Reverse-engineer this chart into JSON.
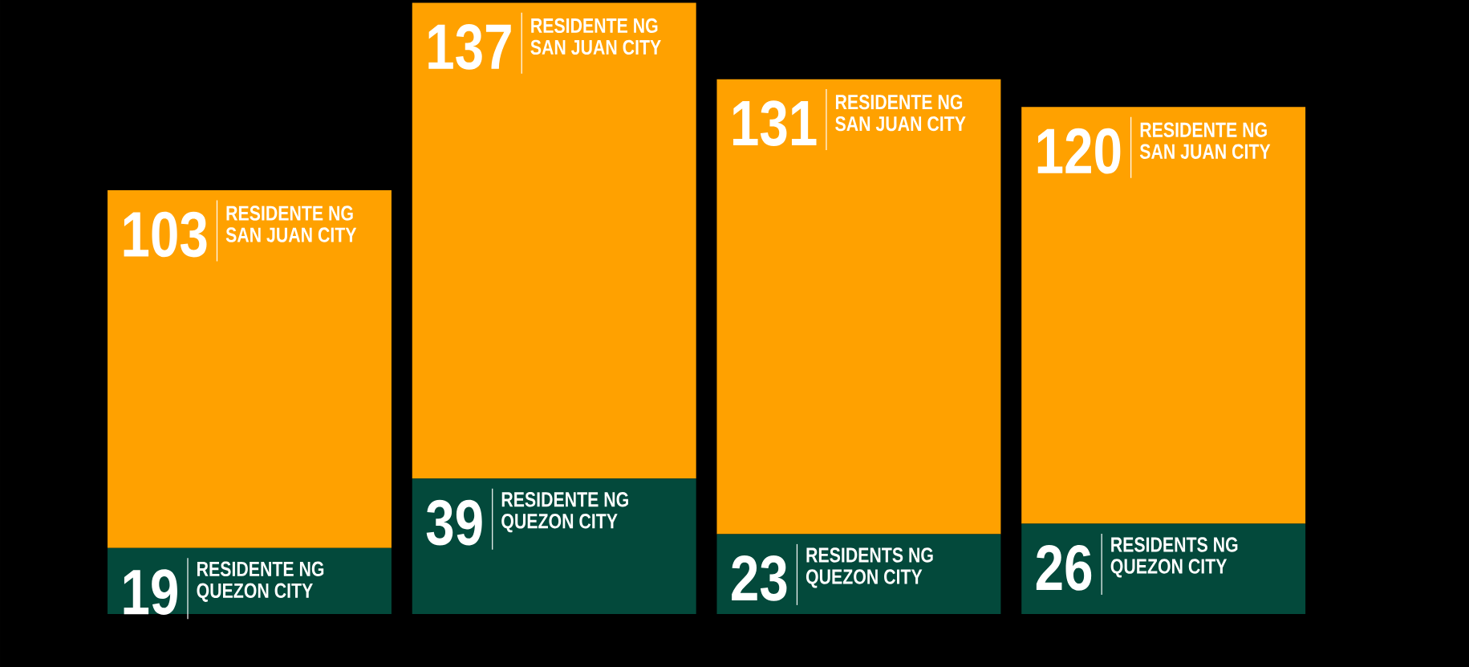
{
  "chart_data": {
    "type": "bar",
    "stacked": true,
    "categories": [
      null,
      null,
      null,
      null
    ],
    "series": [
      {
        "color": "#03493b",
        "values": [
          19,
          39,
          23,
          26
        ]
      },
      {
        "color": "#ffa100",
        "values": [
          103,
          137,
          131,
          120
        ]
      }
    ],
    "data_labels": true,
    "annotations": [
      "RESIDENTE NG QUEZON CITY",
      "RESIDENTE NG QUEZON CITY",
      "RESIDENTS NG QUEZON CITY",
      "RESIDENTS NG QUEZON CITY",
      "RESIDENTE NG SAN JUAN CITY",
      "RESIDENTE NG SAN JUAN CITY",
      "RESIDENTE NG SAN JUAN CITY",
      "RESIDENTE NG SAN JUAN CITY"
    ]
  }
}
